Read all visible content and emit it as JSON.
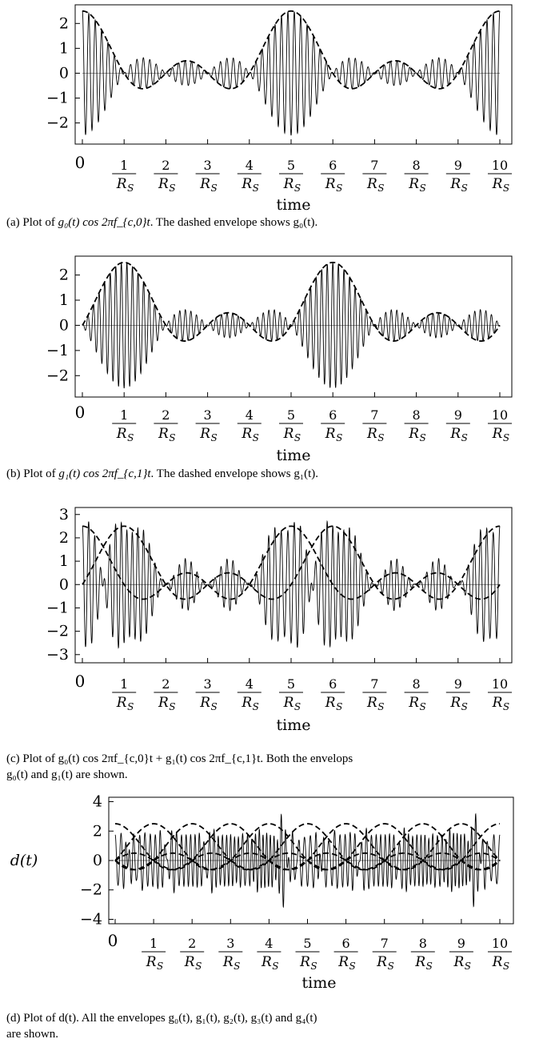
{
  "chart_data": [
    {
      "type": "line",
      "panel": "a",
      "xlabel": "time",
      "ylabel": "",
      "ylim": [
        -2.85,
        2.75
      ],
      "yticks": [
        2,
        1,
        0,
        -1,
        -2
      ],
      "ytick_labels": [
        "2",
        "1",
        "0",
        "−1",
        "−2"
      ],
      "x_units": "1/R_S",
      "xlim": [
        0,
        10
      ],
      "xticks": [
        0,
        1,
        2,
        3,
        4,
        5,
        6,
        7,
        8,
        9,
        10
      ],
      "xtick_numerators": [
        "0",
        "1",
        "2",
        "3",
        "4",
        "5",
        "6",
        "7",
        "8",
        "9",
        "10"
      ],
      "xtick_denominator": "R",
      "xtick_denominator_sub": "S",
      "series": [
        {
          "style": "solid",
          "kind": "carrier",
          "envelope_peaks_at": [
            0,
            5,
            10
          ],
          "peak": 2.5,
          "cycles_per_symbol": 6.5
        },
        {
          "style": "dashed",
          "kind": "envelope",
          "peaks_at": [
            0,
            5,
            10
          ],
          "peak": 2.5,
          "side_lobe": 0.5,
          "min": -0.6
        }
      ],
      "caption": {
        "pre": "(a) Plot of ",
        "math": "g₀(t) cos 2πf_{c,0}t",
        "post": ". The dashed envelope shows g₀(t)."
      }
    },
    {
      "type": "line",
      "panel": "b",
      "xlabel": "time",
      "ylabel": "",
      "ylim": [
        -2.85,
        2.75
      ],
      "yticks": [
        2,
        1,
        0,
        -1,
        -2
      ],
      "ytick_labels": [
        "2",
        "1",
        "0",
        "−1",
        "−2"
      ],
      "xlim": [
        0,
        10
      ],
      "xticks": [
        0,
        1,
        2,
        3,
        4,
        5,
        6,
        7,
        8,
        9,
        10
      ],
      "xtick_numerators": [
        "0",
        "1",
        "2",
        "3",
        "4",
        "5",
        "6",
        "7",
        "8",
        "9",
        "10"
      ],
      "xtick_denominator": "R",
      "xtick_denominator_sub": "S",
      "series": [
        {
          "style": "solid",
          "kind": "carrier",
          "envelope_peaks_at": [
            1,
            6
          ],
          "peak": 2.5,
          "cycles_per_symbol": 7.5
        },
        {
          "style": "dashed",
          "kind": "envelope",
          "peaks_at": [
            1,
            6
          ],
          "peak": 2.5,
          "side_lobe": 0.5,
          "min": -0.6
        }
      ],
      "caption": {
        "pre": "(b) Plot of ",
        "math": "g₁(t) cos 2πf_{c,1}t",
        "post": ". The dashed envelope shows g₁(t)."
      }
    },
    {
      "type": "line",
      "panel": "c",
      "xlabel": "time",
      "ylabel": "",
      "ylim": [
        -3.35,
        3.3
      ],
      "yticks": [
        3,
        2,
        1,
        0,
        -1,
        -2,
        -3
      ],
      "ytick_labels": [
        "3",
        "2",
        "1",
        "0",
        "−1",
        "−2",
        "−3"
      ],
      "xlim": [
        0,
        10
      ],
      "xticks": [
        0,
        1,
        2,
        3,
        4,
        5,
        6,
        7,
        8,
        9,
        10
      ],
      "xtick_numerators": [
        "0",
        "1",
        "2",
        "3",
        "4",
        "5",
        "6",
        "7",
        "8",
        "9",
        "10"
      ],
      "xtick_denominator": "R",
      "xtick_denominator_sub": "S",
      "series": [
        {
          "style": "solid",
          "kind": "sum_of_carriers"
        },
        {
          "style": "dashed",
          "kind": "envelope",
          "peaks_at": [
            0,
            5,
            10
          ],
          "peak": 2.5
        },
        {
          "style": "dashed",
          "kind": "envelope",
          "peaks_at": [
            1,
            6
          ],
          "peak": 2.5
        }
      ],
      "caption": {
        "line1": "(c) Plot of g₀(t) cos 2πf_{c,0}t + g₁(t) cos 2πf_{c,1}t. Both the envelops",
        "line2": "g₀(t) and g₁(t) are shown."
      }
    },
    {
      "type": "line",
      "panel": "d",
      "xlabel": "time",
      "ylabel": "d(t)",
      "ylim": [
        -4.3,
        4.3
      ],
      "yticks": [
        4,
        2,
        0,
        -2,
        -4
      ],
      "ytick_labels": [
        "4",
        "2",
        "0",
        "−2",
        "−4"
      ],
      "xlim": [
        0,
        10
      ],
      "xticks": [
        0,
        1,
        2,
        3,
        4,
        5,
        6,
        7,
        8,
        9,
        10
      ],
      "xtick_numerators": [
        "0",
        "1",
        "2",
        "3",
        "4",
        "5",
        "6",
        "7",
        "8",
        "9",
        "10"
      ],
      "xtick_denominator": "R",
      "xtick_denominator_sub": "S",
      "series": [
        {
          "style": "solid",
          "kind": "sum_of_5_carriers"
        },
        {
          "style": "dashed",
          "kind": "envelope",
          "peaks_at": [
            0,
            5,
            10
          ],
          "peak": 2.5
        },
        {
          "style": "dashed",
          "kind": "envelope",
          "peaks_at": [
            1,
            6
          ],
          "peak": 2.5
        },
        {
          "style": "dashed",
          "kind": "envelope",
          "peaks_at": [
            2,
            7
          ],
          "peak": 2.5
        },
        {
          "style": "dashed",
          "kind": "envelope",
          "peaks_at": [
            3,
            8
          ],
          "peak": 2.5
        },
        {
          "style": "dashed",
          "kind": "envelope",
          "peaks_at": [
            4,
            9
          ],
          "peak": 2.5
        }
      ],
      "caption": {
        "line1": "(d) Plot of d(t). All the envelopes g₀(t), g₁(t), g₂(t), g₃(t) and g₄(t)",
        "line2": "are shown."
      }
    }
  ]
}
